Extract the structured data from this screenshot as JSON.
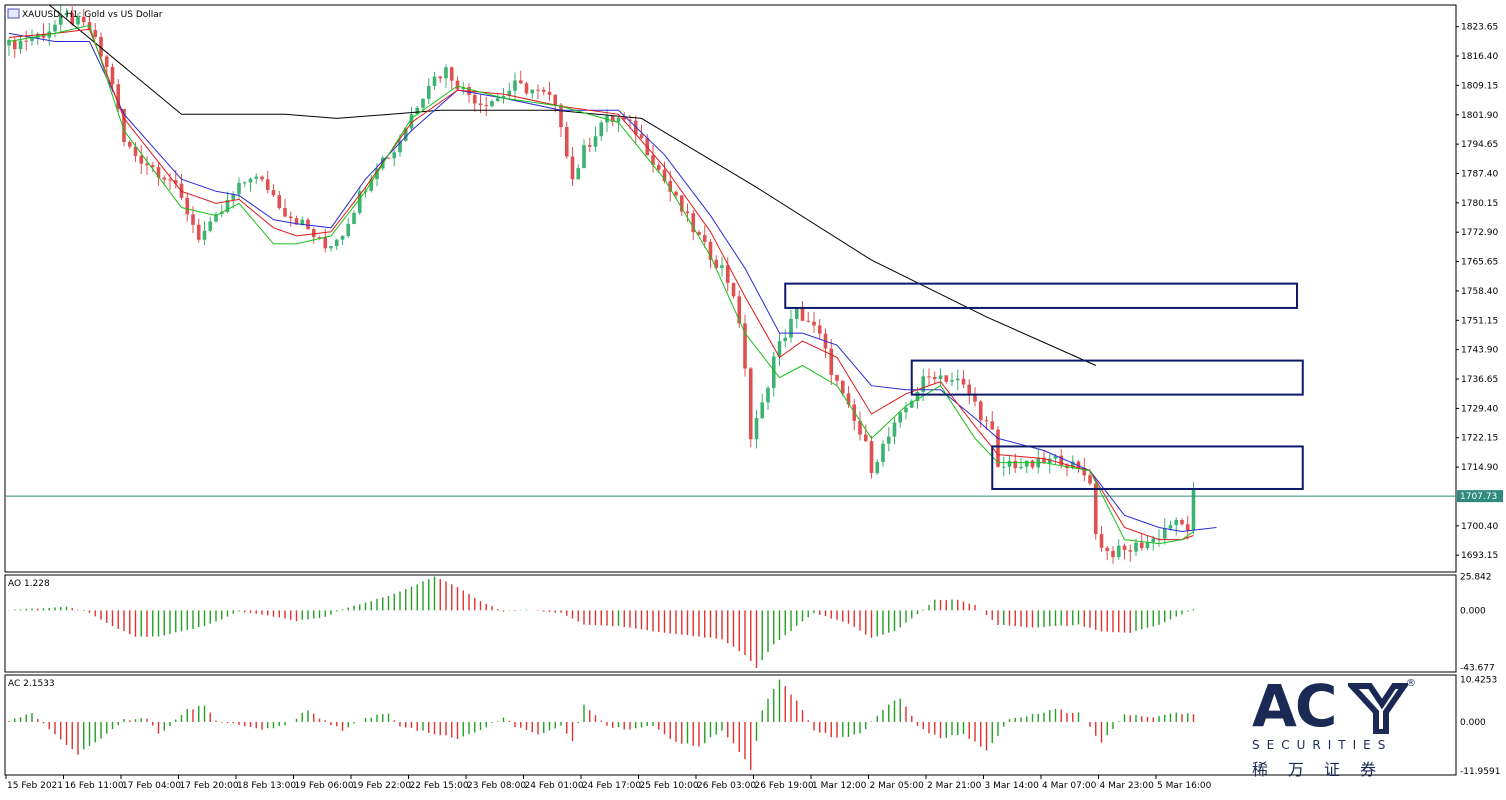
{
  "chart_data": {
    "type": "candlestick",
    "header": "XAUUSD, H1: Gold vs US Dollar",
    "price_axis_ticks": [
      "1823.65",
      "1816.40",
      "1809.15",
      "1801.90",
      "1794.65",
      "1787.40",
      "1780.15",
      "1772.90",
      "1765.65",
      "1758.40",
      "1751.15",
      "1743.90",
      "1736.65",
      "1729.40",
      "1722.15",
      "1714.90",
      "1700.40",
      "1693.15"
    ],
    "price_range": [
      1689.0,
      1829.0
    ],
    "current_price": "1707.73",
    "current_price_value": 1707.73,
    "time_axis_labels": [
      "15 Feb 2021",
      "16 Feb 11:00",
      "17 Feb 04:00",
      "17 Feb 20:00",
      "18 Feb 13:00",
      "19 Feb 06:00",
      "19 Feb 22:00",
      "22 Feb 15:00",
      "23 Feb 08:00",
      "24 Feb 01:00",
      "24 Feb 17:00",
      "25 Feb 10:00",
      "26 Feb 03:00",
      "26 Feb 19:00",
      "1 Mar 12:00",
      "2 Mar 05:00",
      "2 Mar 21:00",
      "3 Mar 14:00",
      "4 Mar 07:00",
      "4 Mar 23:00",
      "5 Mar 16:00"
    ],
    "close_path": [
      [
        0,
        1819
      ],
      [
        6,
        1822
      ],
      [
        10,
        1826
      ],
      [
        14,
        1823
      ],
      [
        18,
        1810
      ],
      [
        20,
        1795
      ],
      [
        22,
        1792
      ],
      [
        25,
        1789
      ],
      [
        28,
        1786
      ],
      [
        31,
        1778
      ],
      [
        33,
        1772
      ],
      [
        35,
        1774
      ],
      [
        39,
        1782
      ],
      [
        42,
        1787
      ],
      [
        45,
        1784
      ],
      [
        48,
        1778
      ],
      [
        51,
        1775
      ],
      [
        53,
        1772
      ],
      [
        55,
        1769
      ],
      [
        58,
        1773
      ],
      [
        61,
        1782
      ],
      [
        64,
        1790
      ],
      [
        67,
        1793
      ],
      [
        70,
        1802
      ],
      [
        73,
        1810
      ],
      [
        76,
        1813
      ],
      [
        79,
        1808
      ],
      [
        82,
        1805
      ],
      [
        85,
        1806
      ],
      [
        88,
        1809
      ],
      [
        91,
        1808
      ],
      [
        94,
        1806
      ],
      [
        96,
        1800
      ],
      [
        98,
        1786
      ],
      [
        100,
        1793
      ],
      [
        103,
        1800
      ],
      [
        106,
        1801
      ],
      [
        109,
        1798
      ],
      [
        112,
        1791
      ],
      [
        115,
        1783
      ],
      [
        118,
        1776
      ],
      [
        121,
        1769
      ],
      [
        124,
        1764
      ],
      [
        126,
        1758
      ],
      [
        128,
        1740
      ],
      [
        129,
        1722
      ],
      [
        131,
        1730
      ],
      [
        133,
        1742
      ],
      [
        135,
        1748
      ],
      [
        137,
        1753
      ],
      [
        139,
        1751
      ],
      [
        141,
        1747
      ],
      [
        143,
        1739
      ],
      [
        145,
        1732
      ],
      [
        147,
        1726
      ],
      [
        149,
        1720
      ],
      [
        150,
        1715
      ],
      [
        152,
        1720
      ],
      [
        155,
        1727
      ],
      [
        157,
        1732
      ],
      [
        159,
        1736
      ],
      [
        161,
        1738
      ],
      [
        163,
        1737
      ],
      [
        165,
        1736
      ],
      [
        167,
        1733
      ],
      [
        169,
        1728
      ],
      [
        171,
        1723
      ],
      [
        172,
        1714
      ],
      [
        174,
        1716
      ],
      [
        177,
        1715
      ],
      [
        180,
        1716
      ],
      [
        183,
        1717
      ],
      [
        186,
        1714
      ],
      [
        188,
        1712
      ],
      [
        189,
        1698
      ],
      [
        191,
        1694
      ],
      [
        194,
        1694
      ],
      [
        197,
        1696
      ],
      [
        199,
        1697
      ],
      [
        202,
        1701
      ],
      [
        205,
        1700
      ],
      [
        206,
        1708
      ]
    ],
    "indicators": {
      "sma_black": [
        [
          7,
          1829
        ],
        [
          30,
          1802
        ],
        [
          48,
          1802
        ],
        [
          57,
          1801
        ],
        [
          75,
          1803
        ],
        [
          95,
          1803
        ],
        [
          110,
          1801
        ],
        [
          130,
          1784
        ],
        [
          150,
          1766
        ],
        [
          170,
          1752
        ],
        [
          189,
          1740
        ]
      ],
      "line_blue": [
        [
          0,
          1822
        ],
        [
          8,
          1820
        ],
        [
          14,
          1820
        ],
        [
          20,
          1802
        ],
        [
          30,
          1786
        ],
        [
          36,
          1783
        ],
        [
          40,
          1782
        ],
        [
          46,
          1776
        ],
        [
          50,
          1775
        ],
        [
          56,
          1774
        ],
        [
          62,
          1786
        ],
        [
          70,
          1798
        ],
        [
          78,
          1808
        ],
        [
          86,
          1806
        ],
        [
          96,
          1803
        ],
        [
          106,
          1803
        ],
        [
          114,
          1792
        ],
        [
          122,
          1777
        ],
        [
          128,
          1764
        ],
        [
          134,
          1748
        ],
        [
          138,
          1748
        ],
        [
          144,
          1745
        ],
        [
          150,
          1735
        ],
        [
          156,
          1734
        ],
        [
          162,
          1734
        ],
        [
          168,
          1727
        ],
        [
          172,
          1722
        ],
        [
          180,
          1719
        ],
        [
          188,
          1714
        ],
        [
          194,
          1703
        ],
        [
          200,
          1700
        ],
        [
          204,
          1699
        ],
        [
          210,
          1700
        ]
      ],
      "line_red": [
        [
          0,
          1821
        ],
        [
          8,
          1822
        ],
        [
          14,
          1823
        ],
        [
          20,
          1801
        ],
        [
          30,
          1783
        ],
        [
          36,
          1780
        ],
        [
          40,
          1781
        ],
        [
          46,
          1774
        ],
        [
          50,
          1772
        ],
        [
          56,
          1773
        ],
        [
          62,
          1784
        ],
        [
          70,
          1800
        ],
        [
          78,
          1808
        ],
        [
          86,
          1807
        ],
        [
          96,
          1804
        ],
        [
          106,
          1802
        ],
        [
          114,
          1789
        ],
        [
          122,
          1773
        ],
        [
          128,
          1757
        ],
        [
          134,
          1742
        ],
        [
          138,
          1746
        ],
        [
          144,
          1742
        ],
        [
          150,
          1728
        ],
        [
          156,
          1733
        ],
        [
          162,
          1736
        ],
        [
          168,
          1725
        ],
        [
          172,
          1718
        ],
        [
          180,
          1717
        ],
        [
          188,
          1714
        ],
        [
          194,
          1700
        ],
        [
          200,
          1697
        ],
        [
          204,
          1697
        ],
        [
          206,
          1698
        ]
      ],
      "line_green": [
        [
          0,
          1820
        ],
        [
          8,
          1822
        ],
        [
          14,
          1824
        ],
        [
          20,
          1798
        ],
        [
          30,
          1779
        ],
        [
          36,
          1777
        ],
        [
          40,
          1780
        ],
        [
          46,
          1770
        ],
        [
          50,
          1770
        ],
        [
          56,
          1772
        ],
        [
          62,
          1783
        ],
        [
          70,
          1801
        ],
        [
          78,
          1809
        ],
        [
          86,
          1806
        ],
        [
          96,
          1804
        ],
        [
          106,
          1800
        ],
        [
          114,
          1786
        ],
        [
          122,
          1767
        ],
        [
          128,
          1748
        ],
        [
          134,
          1737
        ],
        [
          138,
          1740
        ],
        [
          144,
          1735
        ],
        [
          150,
          1722
        ],
        [
          156,
          1730
        ],
        [
          162,
          1735
        ],
        [
          168,
          1722
        ],
        [
          172,
          1716
        ],
        [
          180,
          1716
        ],
        [
          188,
          1714
        ],
        [
          194,
          1697
        ],
        [
          200,
          1696
        ],
        [
          204,
          1697
        ],
        [
          206,
          1699
        ]
      ]
    },
    "zones": [
      {
        "x": [
          135,
          224
        ],
        "y": [
          1760.2,
          1754.2
        ]
      },
      {
        "x": [
          157,
          225
        ],
        "y": [
          1741.2,
          1732.8
        ]
      },
      {
        "x": [
          171,
          225
        ],
        "y": [
          1720.0,
          1709.5
        ]
      }
    ],
    "ao": {
      "label": "AO 1.228",
      "ticks": [
        "25.842",
        "0.000",
        "-43.677"
      ],
      "range": [
        -47,
        27
      ],
      "path": [
        [
          0,
          0.5
        ],
        [
          6,
          1.5
        ],
        [
          10,
          3
        ],
        [
          14,
          -2
        ],
        [
          18,
          -12
        ],
        [
          22,
          -20
        ],
        [
          26,
          -20
        ],
        [
          30,
          -16
        ],
        [
          34,
          -12
        ],
        [
          40,
          -1
        ],
        [
          45,
          -4
        ],
        [
          50,
          -8
        ],
        [
          55,
          -5
        ],
        [
          58,
          1
        ],
        [
          62,
          6
        ],
        [
          66,
          11
        ],
        [
          70,
          18
        ],
        [
          74,
          25.8
        ],
        [
          78,
          18
        ],
        [
          82,
          7
        ],
        [
          86,
          -1
        ],
        [
          90,
          0.5
        ],
        [
          96,
          -2
        ],
        [
          100,
          -11
        ],
        [
          106,
          -12
        ],
        [
          112,
          -16
        ],
        [
          118,
          -19
        ],
        [
          124,
          -22
        ],
        [
          128,
          -34
        ],
        [
          130,
          -43.7
        ],
        [
          133,
          -26
        ],
        [
          137,
          -12
        ],
        [
          140,
          -2
        ],
        [
          146,
          -10
        ],
        [
          150,
          -21
        ],
        [
          154,
          -16
        ],
        [
          158,
          -3
        ],
        [
          161,
          8
        ],
        [
          165,
          8
        ],
        [
          168,
          4
        ],
        [
          172,
          -11
        ],
        [
          178,
          -13
        ],
        [
          186,
          -11
        ],
        [
          190,
          -16
        ],
        [
          195,
          -17
        ],
        [
          200,
          -11
        ],
        [
          206,
          1.2
        ]
      ]
    },
    "ac": {
      "label": "AC 2.1533",
      "ticks": [
        "10.4253",
        "0.000",
        "-11.9591"
      ],
      "range": [
        -13,
        11.5
      ],
      "path": [
        [
          0,
          0.5
        ],
        [
          4,
          2
        ],
        [
          8,
          -3
        ],
        [
          12,
          -8
        ],
        [
          16,
          -4
        ],
        [
          20,
          0.5
        ],
        [
          24,
          1
        ],
        [
          26,
          -3
        ],
        [
          28,
          -1
        ],
        [
          31,
          3
        ],
        [
          34,
          4
        ],
        [
          36,
          0.5
        ],
        [
          40,
          -1
        ],
        [
          44,
          -2
        ],
        [
          48,
          -1
        ],
        [
          52,
          3
        ],
        [
          54,
          1
        ],
        [
          58,
          -2
        ],
        [
          62,
          1
        ],
        [
          66,
          2
        ],
        [
          68,
          -1
        ],
        [
          71,
          -2
        ],
        [
          74,
          -3
        ],
        [
          78,
          -4
        ],
        [
          82,
          -2
        ],
        [
          86,
          1
        ],
        [
          88,
          -1
        ],
        [
          92,
          -3
        ],
        [
          96,
          -1
        ],
        [
          98,
          -5
        ],
        [
          100,
          4
        ],
        [
          104,
          -1
        ],
        [
          108,
          -2
        ],
        [
          112,
          -1
        ],
        [
          116,
          -5
        ],
        [
          120,
          -6
        ],
        [
          124,
          -2
        ],
        [
          128,
          -9
        ],
        [
          129,
          -11.96
        ],
        [
          131,
          3
        ],
        [
          134,
          10.4
        ],
        [
          137,
          5
        ],
        [
          140,
          -2
        ],
        [
          144,
          -4
        ],
        [
          148,
          -3
        ],
        [
          152,
          3
        ],
        [
          155,
          6
        ],
        [
          158,
          -1
        ],
        [
          162,
          -4
        ],
        [
          166,
          -3
        ],
        [
          170,
          -7
        ],
        [
          174,
          0.5
        ],
        [
          178,
          2
        ],
        [
          182,
          3
        ],
        [
          186,
          2
        ],
        [
          190,
          -5
        ],
        [
          194,
          2
        ],
        [
          198,
          1
        ],
        [
          202,
          2
        ],
        [
          206,
          2.15
        ]
      ]
    }
  },
  "logo": {
    "wordmark": "AC",
    "registered": "®",
    "tagline": "SECURITIES",
    "chinese": "稀万证券",
    "color": "#1b2a55"
  }
}
